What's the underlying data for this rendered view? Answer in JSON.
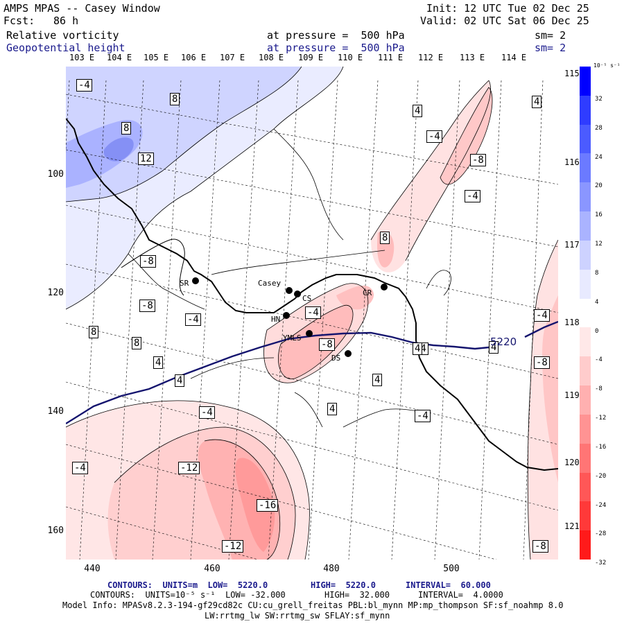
{
  "header": {
    "title": "AMPS MPAS -- Casey Window",
    "fcst_label": "Fcst:",
    "fcst_value": "86 h",
    "init": "Init: 12 UTC Tue 02 Dec 25",
    "valid": "Valid: 02 UTC Sat 06 Dec 25",
    "field1": "Relative vorticity",
    "field1_level": "at pressure =  500 hPa",
    "field1_sm": "sm= 2",
    "field2": "Geopotential height",
    "field2_level": "at pressure =  500 hPa",
    "field2_sm": "sm= 2"
  },
  "lon_labels": [
    "103 E",
    "104 E",
    "105 E",
    "106 E",
    "107 E",
    "108 E",
    "109 E",
    "110 E",
    "111 E",
    "112 E",
    "113 E",
    "114 E"
  ],
  "right_labels": [
    "115 E",
    "116 E",
    "117 E",
    "118 E",
    "119 E",
    "120 E",
    "121 E"
  ],
  "y_ticks": [
    "100",
    "120",
    "140",
    "160"
  ],
  "x_ticks": [
    "440",
    "460",
    "480",
    "500"
  ],
  "stations": [
    "SR",
    "Casey",
    "CS",
    "CR",
    "HN",
    "YMLS",
    "DS"
  ],
  "contour_labels": [
    "-4",
    "8",
    "4",
    "8",
    "12",
    "-4",
    "4",
    "-8",
    "-4",
    "-8",
    "-8",
    "8",
    "8",
    "-4",
    "8",
    "4",
    "4",
    "-4",
    "-4",
    "-8",
    "-4",
    "4",
    "-4",
    "-8",
    "-16",
    "-12",
    "-12",
    "4",
    "4",
    "4",
    "-4",
    "-4",
    "-8"
  ],
  "height_contour_label": "5220",
  "colorbar": {
    "unit": "10⁻⁵ s⁻¹",
    "labels": [
      "32",
      "28",
      "24",
      "20",
      "16",
      "12",
      "8",
      "4",
      "0",
      "-4",
      "-8",
      "-12",
      "-16",
      "-20",
      "-24",
      "-28",
      "-32"
    ],
    "colors": [
      "#0000ff",
      "#2f3cff",
      "#4b5bff",
      "#6b7aff",
      "#8a96ff",
      "#aab3ff",
      "#cdd2ff",
      "#e8eaff",
      "#ffffff",
      "#ffe8e8",
      "#ffcccc",
      "#ffb0b0",
      "#ff9393",
      "#ff7575",
      "#ff5757",
      "#ff3939",
      "#ff1a1a"
    ]
  },
  "footer": {
    "line1_label": "CONTOURS:  UNITS=m  LOW=  5220.0",
    "line1_high": "HIGH=  5220.0",
    "line1_interval": "INTERVAL=  60.000",
    "line2_label": "CONTOURS:  UNITS=10⁻⁵ s⁻¹  LOW= -32.000",
    "line2_high": "HIGH=  32.000",
    "line2_interval": "INTERVAL=  4.0000",
    "line3": "Model Info: MPASv8.2.3-194-gf29cd82c CU:cu_grell_freitas PBL:bl_mynn MP:mp_thompson SF:sf_noahmp 8.0",
    "line4": "LW:rrtmg_lw SW:rrtmg_sw SFLAY:sf_mynn"
  }
}
